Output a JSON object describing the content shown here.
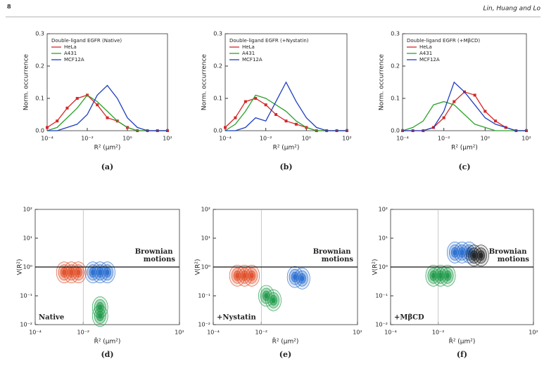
{
  "header": {
    "page": "8",
    "authors": "Lin, Huang and Lo"
  },
  "chart_data": [
    {
      "type": "line",
      "caption": "(a)",
      "legend_title": "Double-ligand EGFR (Native)",
      "log_x": true,
      "xlabel": "R² (μm²)",
      "ylabel": "Norm. occurrence",
      "x": [
        0.0001,
        0.000316,
        0.001,
        0.00316,
        0.01,
        0.0316,
        0.1,
        0.316,
        1,
        3.16,
        10,
        31.6,
        100
      ],
      "series": [
        {
          "name": "HeLa",
          "color": "#d62728",
          "marker": "square",
          "values": [
            0.01,
            0.03,
            0.07,
            0.1,
            0.11,
            0.08,
            0.04,
            0.03,
            0.01,
            0,
            0,
            0,
            0
          ]
        },
        {
          "name": "A431",
          "color": "#2ca02c",
          "values": [
            0,
            0.01,
            0.04,
            0.07,
            0.11,
            0.09,
            0.06,
            0.03,
            0.01,
            0,
            0,
            0,
            0
          ]
        },
        {
          "name": "MCF12A",
          "color": "#1f3fbf",
          "values": [
            0,
            0,
            0.01,
            0.02,
            0.05,
            0.11,
            0.14,
            0.1,
            0.04,
            0.01,
            0,
            0,
            0
          ]
        }
      ],
      "xlim": [
        0.0001,
        100
      ],
      "ylim": [
        0,
        0.3
      ],
      "xticks": [
        {
          "value": 0.0001,
          "label": "10⁻⁴"
        },
        {
          "value": 0.01,
          "label": "10⁻²"
        },
        {
          "value": 1,
          "label": "10⁰"
        },
        {
          "value": 100,
          "label": "10²"
        }
      ],
      "yticks": [
        {
          "value": 0,
          "label": "0.0"
        },
        0.1,
        0.2,
        0.3
      ]
    },
    {
      "type": "line",
      "caption": "(b)",
      "legend_title": "Double-ligand EGFR (+Nystatin)",
      "log_x": true,
      "xlabel": "R² (μm²)",
      "ylabel": "Norm. occurrence",
      "x": [
        0.0001,
        0.000316,
        0.001,
        0.00316,
        0.01,
        0.0316,
        0.1,
        0.316,
        1,
        3.16,
        10,
        31.6,
        100
      ],
      "series": [
        {
          "name": "HeLa",
          "color": "#d62728",
          "marker": "square",
          "values": [
            0.01,
            0.04,
            0.09,
            0.1,
            0.08,
            0.05,
            0.03,
            0.02,
            0.01,
            0,
            0,
            0,
            0
          ]
        },
        {
          "name": "A431",
          "color": "#2ca02c",
          "values": [
            0,
            0.02,
            0.06,
            0.11,
            0.1,
            0.08,
            0.06,
            0.03,
            0.01,
            0,
            0,
            0,
            0
          ]
        },
        {
          "name": "MCF12A",
          "color": "#1f3fbf",
          "values": [
            0,
            0,
            0.01,
            0.04,
            0.03,
            0.09,
            0.15,
            0.09,
            0.04,
            0.01,
            0,
            0,
            0
          ]
        }
      ],
      "xlim": [
        0.0001,
        100
      ],
      "ylim": [
        0,
        0.3
      ],
      "xticks": [
        {
          "value": 0.0001,
          "label": "10⁻⁴"
        },
        {
          "value": 0.01,
          "label": "10⁻²"
        },
        {
          "value": 1,
          "label": "10⁰"
        },
        {
          "value": 100,
          "label": "10²"
        }
      ],
      "yticks": [
        {
          "value": 0,
          "label": "0.0"
        },
        0.1,
        0.2,
        0.3
      ]
    },
    {
      "type": "line",
      "caption": "(c)",
      "legend_title": "Double-ligand EGFR (+MβCD)",
      "log_x": true,
      "xlabel": "R² (μm²)",
      "ylabel": "Norm. occurrence",
      "x": [
        0.0001,
        0.000316,
        0.001,
        0.00316,
        0.01,
        0.0316,
        0.1,
        0.316,
        1,
        3.16,
        10,
        31.6,
        100
      ],
      "series": [
        {
          "name": "HeLa",
          "color": "#d62728",
          "marker": "square",
          "values": [
            0,
            0,
            0,
            0.01,
            0.04,
            0.09,
            0.12,
            0.11,
            0.06,
            0.03,
            0.01,
            0,
            0
          ]
        },
        {
          "name": "A431",
          "color": "#2ca02c",
          "values": [
            0,
            0.01,
            0.03,
            0.08,
            0.09,
            0.08,
            0.05,
            0.02,
            0.01,
            0,
            0,
            0,
            0
          ]
        },
        {
          "name": "MCF12A",
          "color": "#1f3fbf",
          "values": [
            0,
            0,
            0,
            0.01,
            0.06,
            0.15,
            0.12,
            0.08,
            0.04,
            0.02,
            0.01,
            0,
            0
          ]
        }
      ],
      "xlim": [
        0.0001,
        100
      ],
      "ylim": [
        0,
        0.3
      ],
      "xticks": [
        {
          "value": 0.0001,
          "label": "10⁻⁴"
        },
        {
          "value": 0.01,
          "label": "10⁻²"
        },
        {
          "value": 1,
          "label": "10⁰"
        },
        {
          "value": 100,
          "label": "10²"
        }
      ],
      "yticks": [
        {
          "value": 0,
          "label": "0.0"
        },
        0.1,
        0.2,
        0.3
      ]
    },
    {
      "type": "contour",
      "caption": "(d)",
      "annotation": "Native",
      "region_label": "Brownian motions",
      "log_x": true,
      "log_y": true,
      "xlabel": "R̄² (μm²)",
      "ylabel": "V(R²)",
      "hline": 1,
      "vline": 0.01,
      "clusters": [
        {
          "color": "#e0502a",
          "x": [
            0.0016,
            0.0032,
            0.0063
          ],
          "y": [
            0.65,
            0.65,
            0.65
          ]
        },
        {
          "color": "#2a6fd0",
          "x": [
            0.025,
            0.05,
            0.1
          ],
          "y": [
            0.65,
            0.65,
            0.65
          ]
        },
        {
          "color": "#1f9a4a",
          "x": [
            0.05,
            0.05
          ],
          "y": [
            0.04,
            0.02
          ]
        }
      ],
      "xlim": [
        0.0001,
        100
      ],
      "ylim": [
        0.01,
        100
      ],
      "xticks": [
        {
          "value": 0.0001,
          "label": "10⁻⁴"
        },
        {
          "value": 0.01,
          "label": "10⁻²"
        },
        {
          "value": 100,
          "label": "10²"
        }
      ],
      "yticks": [
        {
          "value": 0.01,
          "label": "10⁻²"
        },
        {
          "value": 0.1,
          "label": "10⁻¹"
        },
        {
          "value": 1,
          "label": "10⁰"
        },
        {
          "value": 10,
          "label": "10¹"
        },
        {
          "value": 100,
          "label": "10²"
        }
      ]
    },
    {
      "type": "contour",
      "caption": "(e)",
      "annotation": "+Nystatin",
      "region_label": "Brownian motions",
      "log_x": true,
      "log_y": true,
      "xlabel": "R̄² (μm²)",
      "ylabel": "V(R²)",
      "hline": 1,
      "vline": 0.01,
      "clusters": [
        {
          "color": "#e0502a",
          "x": [
            0.001,
            0.002,
            0.004
          ],
          "y": [
            0.5,
            0.5,
            0.5
          ]
        },
        {
          "color": "#1f9a4a",
          "x": [
            0.016,
            0.032
          ],
          "y": [
            0.1,
            0.07
          ]
        },
        {
          "color": "#2a6fd0",
          "x": [
            0.25,
            0.5
          ],
          "y": [
            0.45,
            0.4
          ]
        }
      ],
      "xlim": [
        0.0001,
        100
      ],
      "ylim": [
        0.01,
        100
      ],
      "xticks": [
        {
          "value": 0.0001,
          "label": "10⁻⁴"
        },
        {
          "value": 0.01,
          "label": "10⁻²"
        },
        {
          "value": 100,
          "label": "10²"
        }
      ],
      "yticks": [
        {
          "value": 0.01,
          "label": "10⁻²"
        },
        {
          "value": 0.1,
          "label": "10⁻¹"
        },
        {
          "value": 1,
          "label": "10⁰"
        },
        {
          "value": 10,
          "label": "10¹"
        },
        {
          "value": 100,
          "label": "10²"
        }
      ]
    },
    {
      "type": "contour",
      "caption": "(f)",
      "annotation": "+MβCD",
      "region_label": "Brownian motions",
      "log_x": true,
      "log_y": true,
      "xlabel": "R̄² (μm²)",
      "ylabel": "V(R²)",
      "hline": 1,
      "vline": 0.01,
      "clusters": [
        {
          "color": "#1f9a4a",
          "x": [
            0.0063,
            0.0126,
            0.025
          ],
          "y": [
            0.5,
            0.5,
            0.5
          ]
        },
        {
          "color": "#2a6fd0",
          "x": [
            0.05,
            0.1,
            0.2
          ],
          "y": [
            3.2,
            3.2,
            3.2
          ]
        },
        {
          "color": "#222222",
          "x": [
            0.32,
            0.63
          ],
          "y": [
            2.5,
            2.5
          ]
        }
      ],
      "xlim": [
        0.0001,
        100
      ],
      "ylim": [
        0.01,
        100
      ],
      "xticks": [
        {
          "value": 0.0001,
          "label": "10⁻⁴"
        },
        {
          "value": 0.01,
          "label": "10⁻²"
        },
        {
          "value": 100,
          "label": "10²"
        }
      ],
      "yticks": [
        {
          "value": 0.01,
          "label": "10⁻²"
        },
        {
          "value": 0.1,
          "label": "10⁻¹"
        },
        {
          "value": 1,
          "label": "10⁰"
        },
        {
          "value": 10,
          "label": "10¹"
        },
        {
          "value": 100,
          "label": "10²"
        }
      ]
    }
  ]
}
